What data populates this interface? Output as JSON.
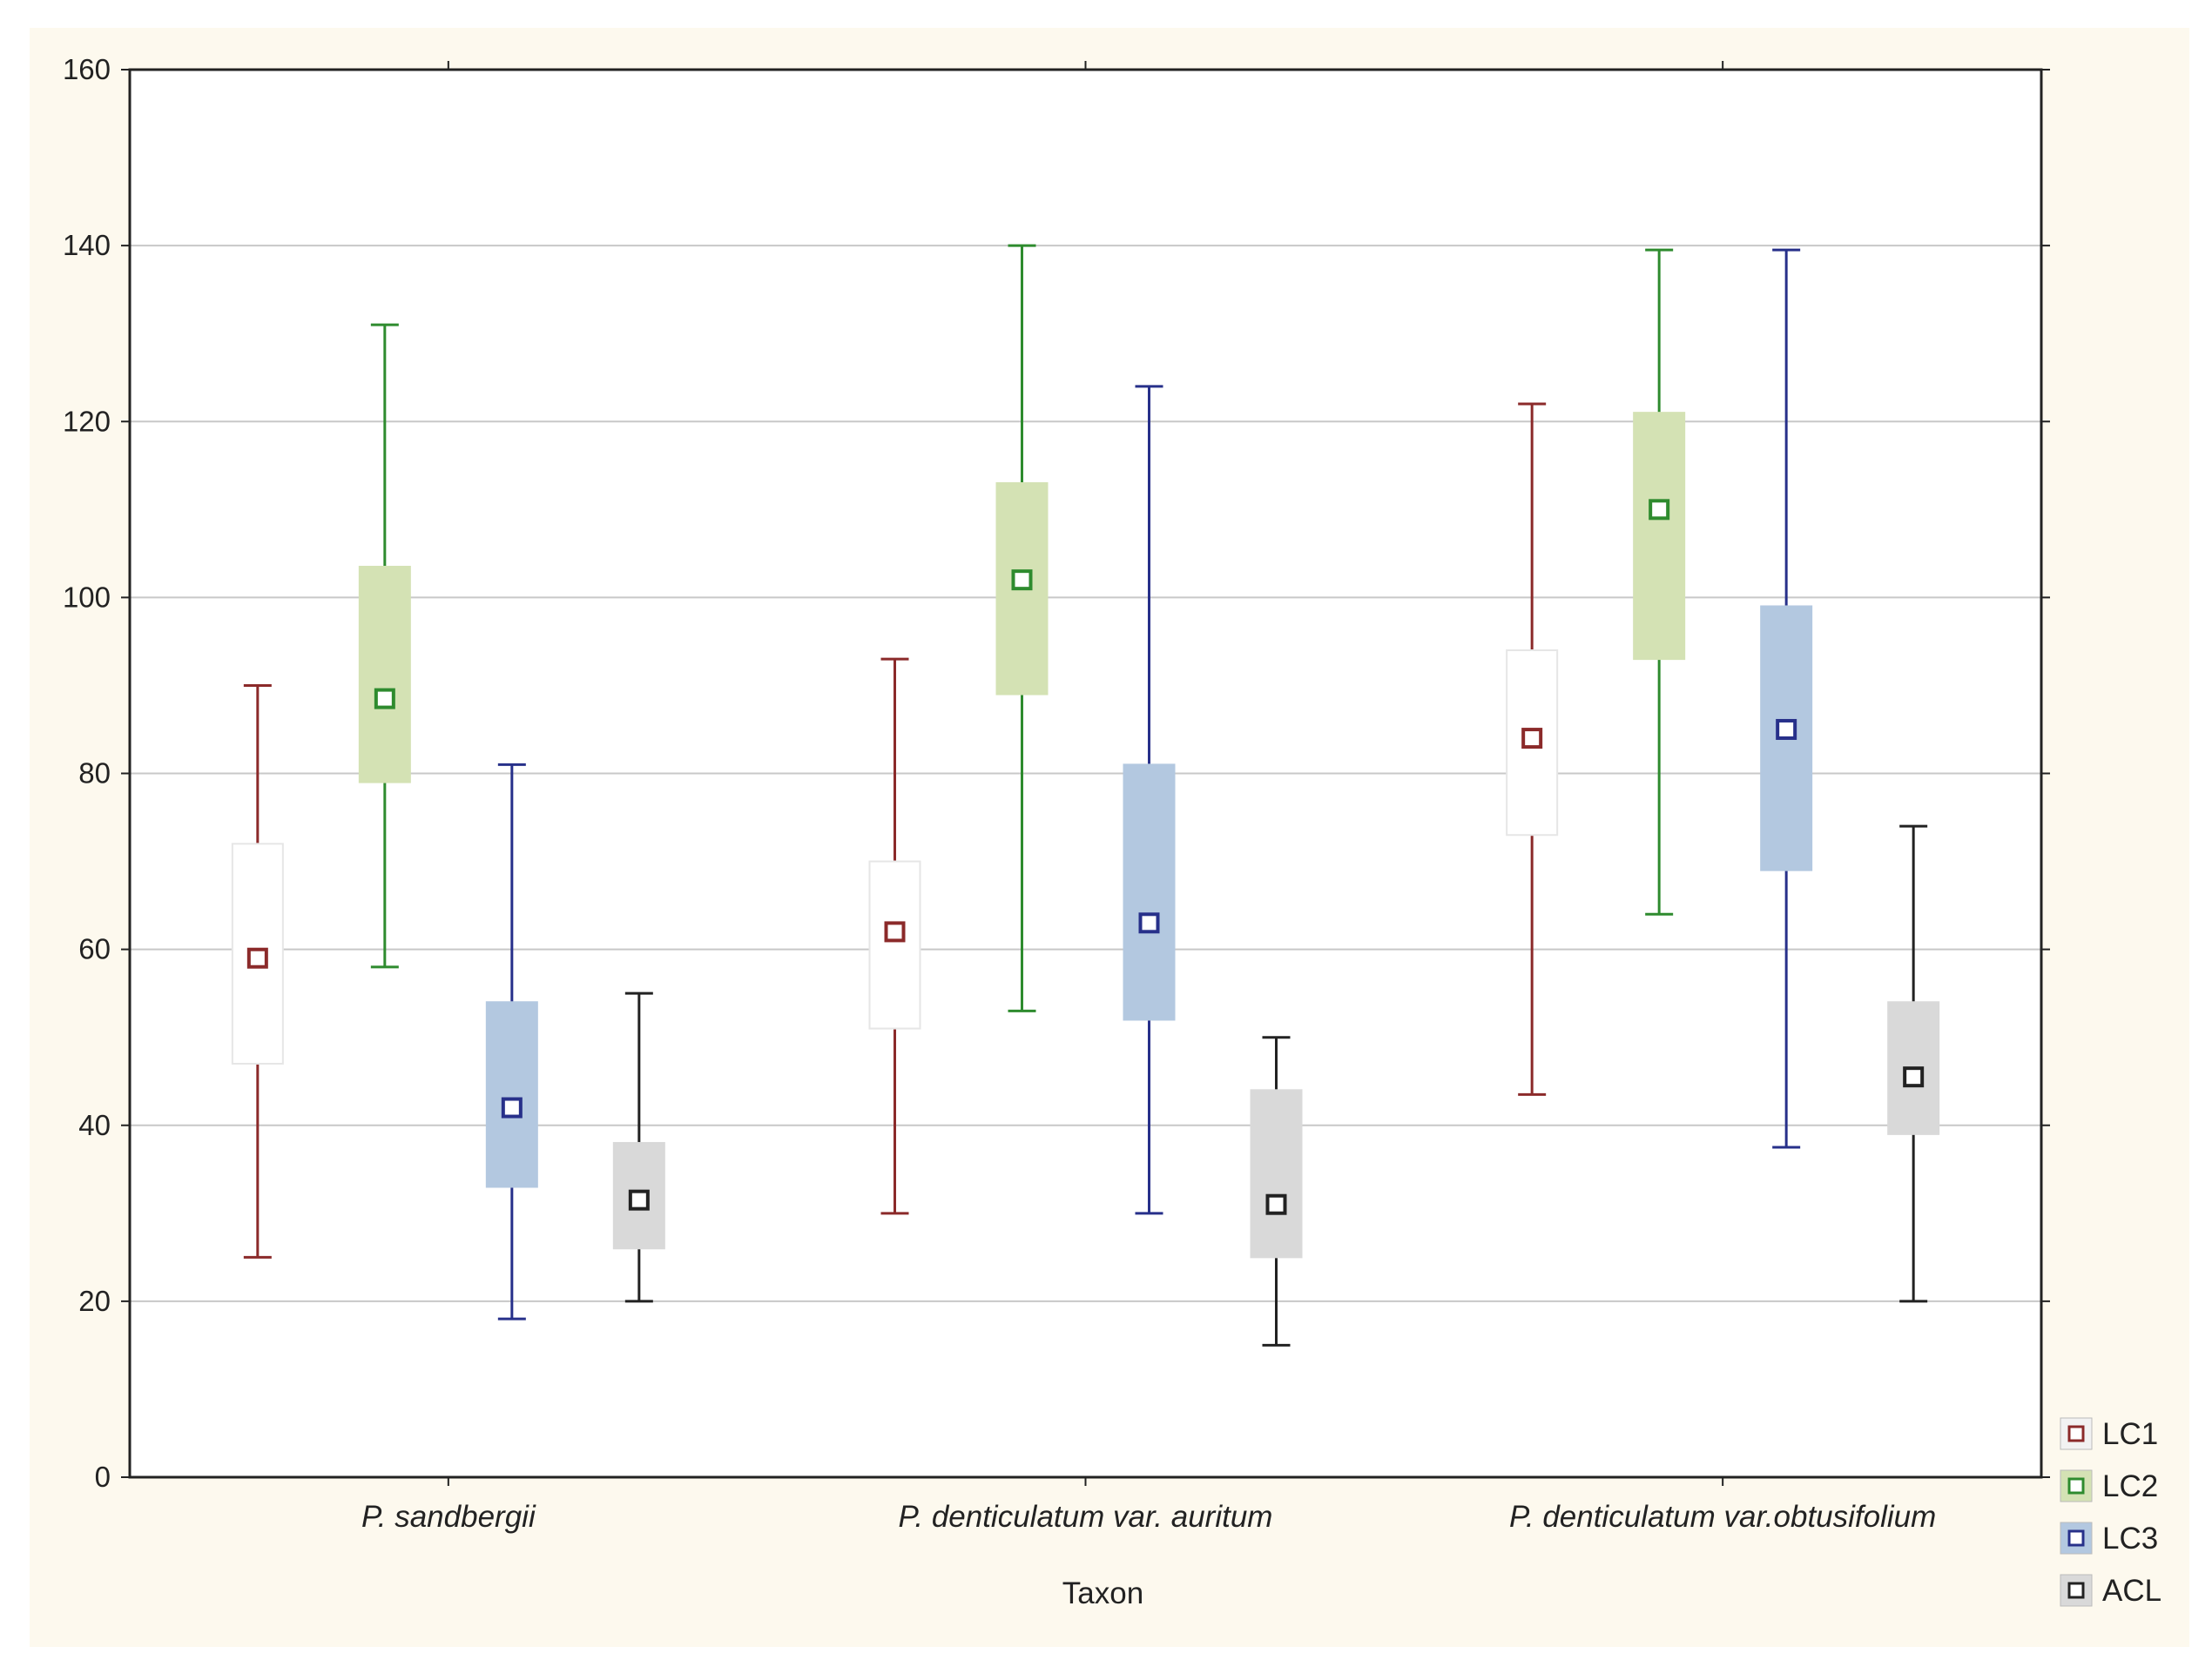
{
  "chart_data": {
    "type": "box",
    "title": "",
    "xlabel": "Taxon",
    "ylabel": "",
    "ylim": [
      0,
      160
    ],
    "yticks": [
      0,
      20,
      40,
      60,
      80,
      100,
      120,
      140,
      160
    ],
    "grid": true,
    "legend_position": "bottom-right",
    "categories": [
      "P. sandbergii",
      "P. denticulatum var. auritum",
      "P. denticulatum var.obtusifolium"
    ],
    "series": [
      {
        "name": "LC1",
        "color": "#8b2a2a",
        "box_fill": "#ffffff",
        "values": [
          {
            "min": 25,
            "q1": 47,
            "mean": 59,
            "q3": 72,
            "max": 90
          },
          {
            "min": 30,
            "q1": 51,
            "mean": 62,
            "q3": 70,
            "max": 93
          },
          {
            "min": 43.5,
            "q1": 73,
            "mean": 84,
            "q3": 94,
            "max": 122
          }
        ]
      },
      {
        "name": "LC2",
        "color": "#2e8b2e",
        "box_fill": "#d4e2b4",
        "values": [
          {
            "min": 58,
            "q1": 79,
            "mean": 88.5,
            "q3": 103.5,
            "max": 131
          },
          {
            "min": 53,
            "q1": 89,
            "mean": 102,
            "q3": 113,
            "max": 140
          },
          {
            "min": 64,
            "q1": 93,
            "mean": 110,
            "q3": 121,
            "max": 139.5
          }
        ]
      },
      {
        "name": "LC3",
        "color": "#27308a",
        "box_fill": "#b3c8e0",
        "values": [
          {
            "min": 18,
            "q1": 33,
            "mean": 42,
            "q3": 54,
            "max": 81
          },
          {
            "min": 30,
            "q1": 52,
            "mean": 63,
            "q3": 81,
            "max": 124
          },
          {
            "min": 37.5,
            "q1": 69,
            "mean": 85,
            "q3": 99,
            "max": 139.5
          }
        ]
      },
      {
        "name": "ACL",
        "color": "#222222",
        "box_fill": "#d9d9d9",
        "values": [
          {
            "min": 20,
            "q1": 26,
            "mean": 31.5,
            "q3": 38,
            "max": 55
          },
          {
            "min": 15,
            "q1": 25,
            "mean": 31,
            "q3": 44,
            "max": 50
          },
          {
            "min": 20,
            "q1": 39,
            "mean": 45.5,
            "q3": 54,
            "max": 74
          }
        ]
      }
    ]
  }
}
